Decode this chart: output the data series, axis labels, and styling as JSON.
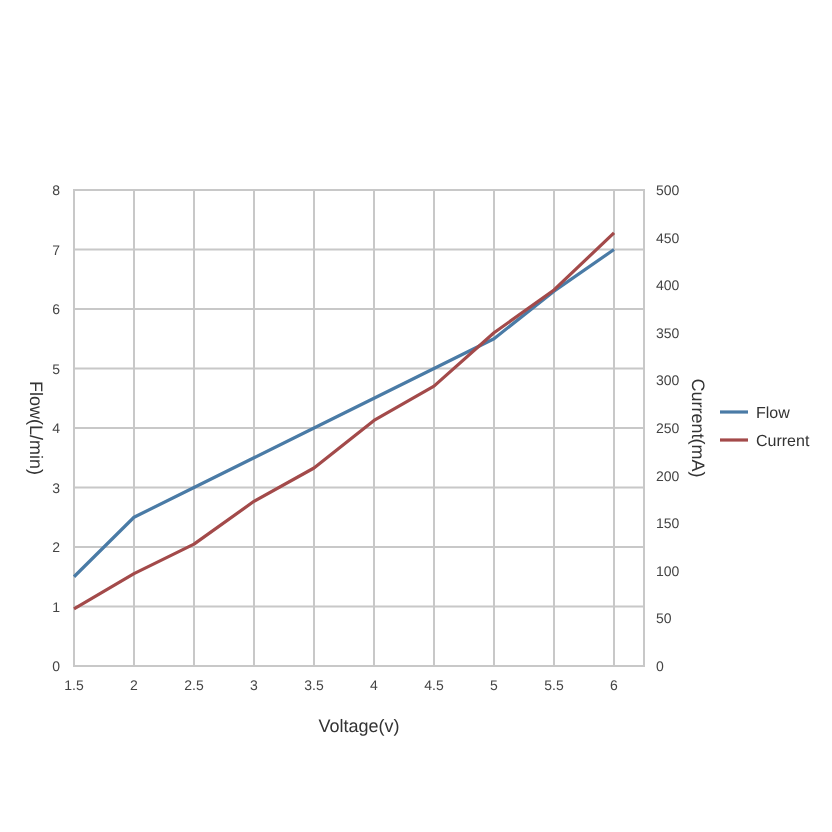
{
  "chart_data": {
    "type": "line",
    "xlabel": "Voltage(v)",
    "ylabel": "Flow(L/min)",
    "y2label": "Current(mA)",
    "x": [
      1.5,
      2,
      2.5,
      3,
      3.5,
      4,
      4.5,
      5,
      5.5,
      6
    ],
    "xlim": [
      1.5,
      6.25
    ],
    "xticks": [
      1.5,
      2,
      2.5,
      3,
      3.5,
      4,
      4.5,
      5,
      5.5,
      6
    ],
    "ylim": [
      0,
      8
    ],
    "yticks": [
      0,
      1,
      2,
      3,
      4,
      5,
      6,
      7,
      8
    ],
    "y2lim": [
      0,
      500
    ],
    "y2ticks": [
      0,
      50,
      100,
      150,
      200,
      250,
      300,
      350,
      400,
      450,
      500
    ],
    "series": [
      {
        "name": "Flow",
        "color": "#4a7ba6",
        "values": [
          1.5,
          2.5,
          3,
          3.5,
          4,
          4.5,
          5,
          5.5,
          6.3,
          7
        ]
      },
      {
        "name": "Current",
        "color": "#a34a4a",
        "axis": "y2",
        "values": [
          60,
          97,
          128,
          173,
          208,
          258,
          294,
          350,
          395,
          455
        ]
      }
    ],
    "grid": true,
    "legend": "right",
    "marker": "none",
    "line_style": "solid"
  }
}
